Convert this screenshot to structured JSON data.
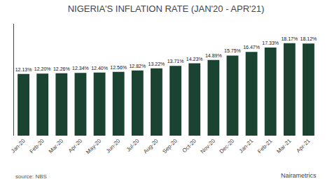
{
  "chart_data": {
    "type": "bar",
    "title": "NIGERIA'S INFLATION RATE (JAN'20 - APR'21)",
    "categories": [
      "Jan-20",
      "Feb-20",
      "Mar-20",
      "Apr-20",
      "May-20",
      "Jun-20",
      "Jul-20",
      "Aug-20",
      "Sep-20",
      "Oct-20",
      "Nov-20",
      "Dec-20",
      "Jan-21",
      "Feb-21",
      "Mar-21",
      "Apr-21"
    ],
    "values": [
      12.13,
      12.2,
      12.26,
      12.34,
      12.4,
      12.56,
      12.82,
      13.22,
      13.71,
      14.23,
      14.89,
      15.75,
      16.47,
      17.33,
      18.17,
      18.12
    ],
    "value_labels": [
      "12.13%",
      "12.20%",
      "12.26%",
      "12.34%",
      "12.40%",
      "12.56%",
      "12.82%",
      "13.22%",
      "13.71%",
      "14.23%",
      "14.89%",
      "15.75%",
      "16.47%",
      "17.33%",
      "18.17%",
      "18.12%"
    ],
    "data_labels": true,
    "color": "#1b4332",
    "ylim": [
      0,
      22
    ],
    "tick_labels": "x",
    "grid": false,
    "annotations": [
      "source: NBS",
      "Nairametrics"
    ]
  }
}
